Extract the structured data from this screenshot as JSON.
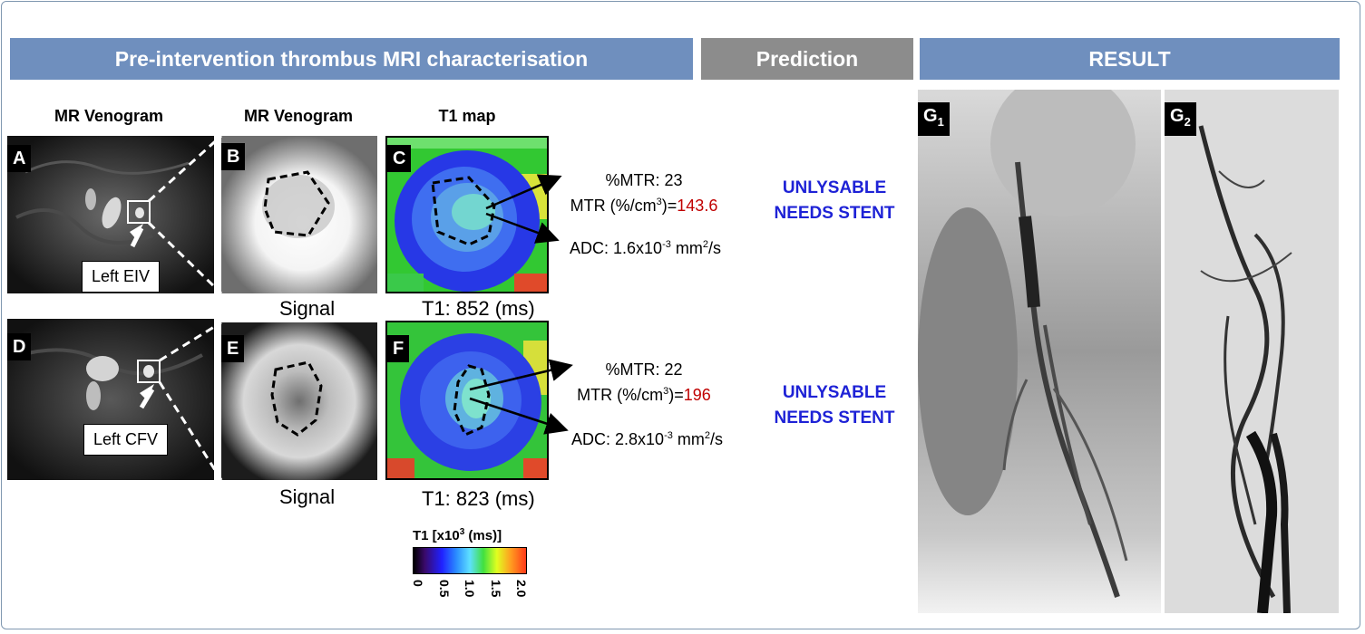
{
  "headers": {
    "characterisation": "Pre-intervention thrombus MRI characterisation",
    "prediction": "Prediction",
    "result": "RESULT"
  },
  "columns": [
    "MR Venogram",
    "MR Venogram",
    "T1 map"
  ],
  "panels": {
    "A": "A",
    "B": "B",
    "C": "C",
    "D": "D",
    "E": "E",
    "F": "F",
    "G1": "G",
    "G1_sub": "1",
    "G2": "G",
    "G2_sub": "2"
  },
  "callouts": {
    "row1": "Left EIV",
    "row2": "Left CFV"
  },
  "rows": [
    {
      "signal_caption": "Signal",
      "t1_caption": "T1: 852 (ms)",
      "mtr_pct": "%MTR: 23",
      "mtr_label": "MTR (%/cm",
      "mtr_value": "143.6",
      "adc_label": "ADC: 1.6x10",
      "adc_exp": "-3",
      "adc_unit": " mm",
      "prediction_line1": "UNLYSABLE",
      "prediction_line2": "NEEDS STENT"
    },
    {
      "signal_caption": "Signal",
      "t1_caption": "T1: 823 (ms)",
      "mtr_pct": "%MTR: 22",
      "mtr_label": "MTR (%/cm",
      "mtr_value": "196",
      "adc_label": "ADC: 2.8x10",
      "adc_exp": "-3",
      "adc_unit": " mm",
      "prediction_line1": "UNLYSABLE",
      "prediction_line2": "NEEDS STENT"
    }
  ],
  "colorbar": {
    "title": "T1 [x10",
    "title_exp": "3",
    "title_end": " (ms)]",
    "ticks": [
      "0",
      "0.5",
      "1.0",
      "1.5",
      "2.0"
    ]
  },
  "colors": {
    "header_blue": "#6f8fbe",
    "header_grey": "#8c8c8c",
    "prediction": "#1e22d6",
    "mtr_value": "#c00000"
  }
}
